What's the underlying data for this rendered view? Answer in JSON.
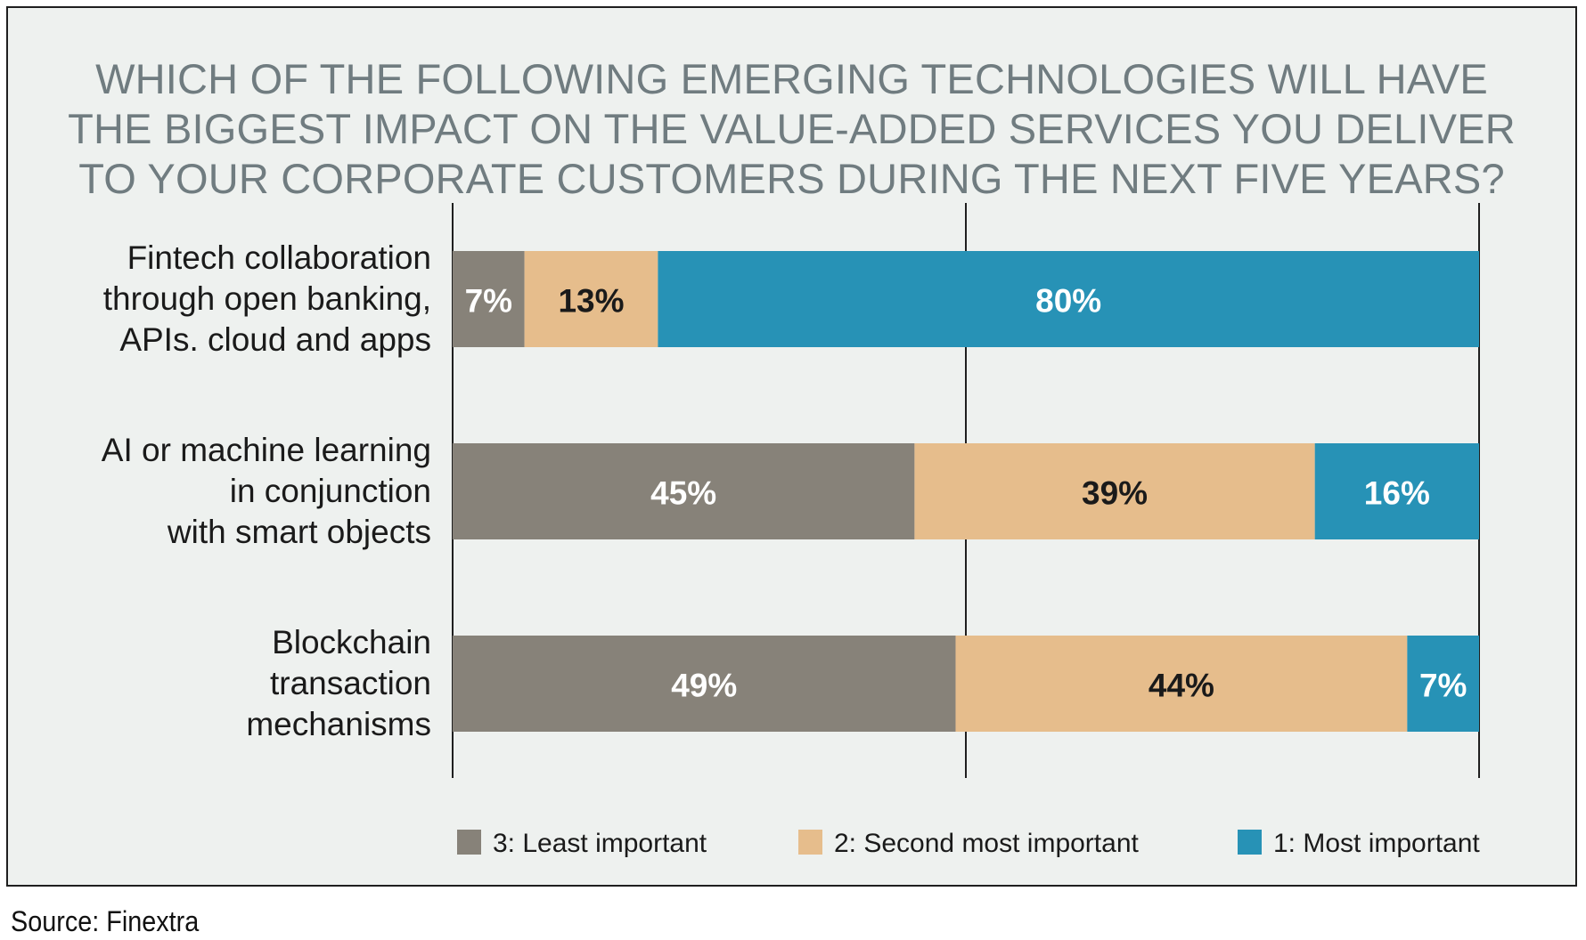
{
  "chart_data": {
    "type": "bar",
    "orientation": "horizontal",
    "stacked": true,
    "title": "WHICH OF THE FOLLOWING EMERGING TECHNOLOGIES WILL HAVE THE BIGGEST IMPACT ON THE VALUE-ADDED SERVICES YOU DELIVER TO YOUR CORPORATE CUSTOMERS DURING THE NEXT FIVE YEARS?",
    "title_lines": [
      "WHICH OF THE FOLLOWING EMERGING TECHNOLOGIES WILL HAVE",
      "THE BIGGEST IMPACT ON THE VALUE-ADDED SERVICES YOU DELIVER",
      "TO YOUR CORPORATE CUSTOMERS DURING THE NEXT FIVE YEARS?"
    ],
    "categories": [
      [
        "Fintech collaboration",
        "through open banking,",
        "APIs. cloud and apps"
      ],
      [
        "AI or machine learning",
        "in conjunction",
        "with smart objects"
      ],
      [
        "Blockchain",
        "transaction",
        "mechanisms"
      ]
    ],
    "series": [
      {
        "name": "3: Least important",
        "color": "#878279",
        "label_color": "#ffffff",
        "values": [
          7,
          45,
          49
        ],
        "labels": [
          "7%",
          "45%",
          "49%"
        ]
      },
      {
        "name": "2: Second most important",
        "color": "#e6bd8c",
        "label_color": "#1a1a1a",
        "values": [
          13,
          39,
          44
        ],
        "labels": [
          "13%",
          "39%",
          "44%"
        ]
      },
      {
        "name": "1: Most important",
        "color": "#2792b6",
        "label_color": "#ffffff",
        "values": [
          80,
          16,
          7
        ],
        "labels": [
          "80%",
          "16%",
          "7%"
        ]
      }
    ],
    "xlim": [
      0,
      100
    ],
    "gridlines_at": [
      0,
      50,
      100
    ],
    "grid": true,
    "legend_position": "bottom"
  },
  "source": "Source: Finextra"
}
